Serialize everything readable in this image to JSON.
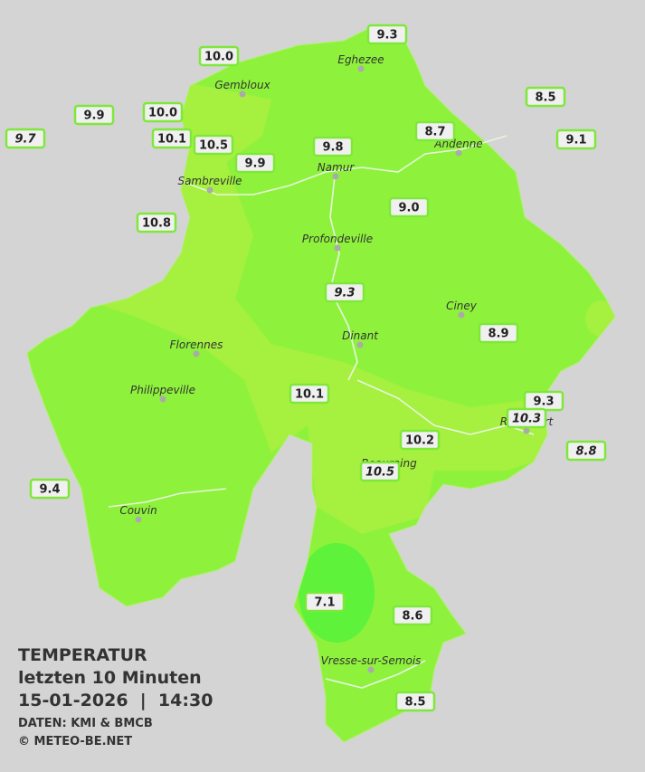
{
  "map": {
    "cities": [
      "Eghezee",
      "Gembloux",
      "Andenne",
      "Sambreville",
      "Namur",
      "Profondeville",
      "Ciney",
      "Florennes",
      "Dinant",
      "Philippeville",
      "Rochefort",
      "Beauraing",
      "Couvin",
      "Vresse-sur-Semois"
    ],
    "stations": [
      {
        "label": "9.3"
      },
      {
        "label": "10.0"
      },
      {
        "label": "8.5"
      },
      {
        "label": "9.9"
      },
      {
        "label": "10.0"
      },
      {
        "label": "9.7",
        "italic": true
      },
      {
        "label": "10.1"
      },
      {
        "label": "10.5"
      },
      {
        "label": "8.7"
      },
      {
        "label": "9.1"
      },
      {
        "label": "9.8"
      },
      {
        "label": "9.9"
      },
      {
        "label": "9.0"
      },
      {
        "label": "10.8"
      },
      {
        "label": "9.3",
        "italic": true
      },
      {
        "label": "8.9"
      },
      {
        "label": "10.1"
      },
      {
        "label": "9.3"
      },
      {
        "label": "10.3",
        "italic": true
      },
      {
        "label": "10.2"
      },
      {
        "label": "8.8",
        "italic": true
      },
      {
        "label": "10.5",
        "italic": true
      },
      {
        "label": "9.4"
      },
      {
        "label": "7.1"
      },
      {
        "label": "8.6"
      },
      {
        "label": "8.5"
      }
    ],
    "legend": {
      "title": "TEMPERATUR",
      "subtitle": "letzten 10 Minuten",
      "datetime": "15-01-2026  |  14:30",
      "source": "DATEN: KMI & BMCB",
      "copyright": "© METEO-BE.NET"
    }
  }
}
